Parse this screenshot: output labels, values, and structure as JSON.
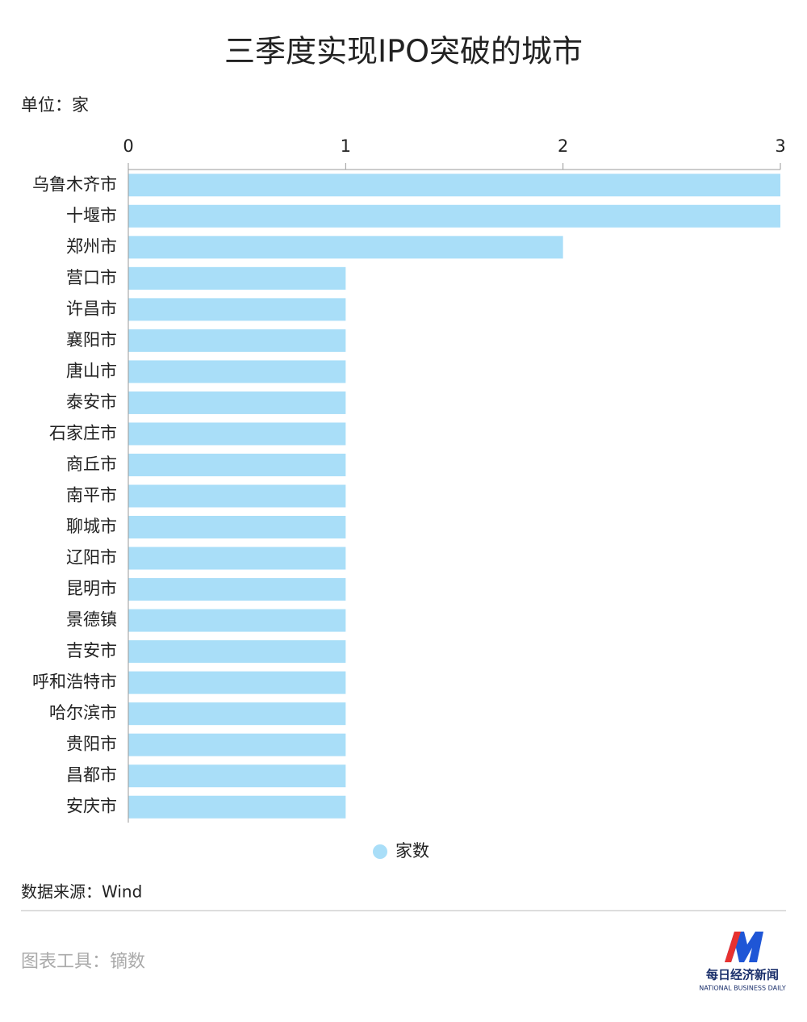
{
  "chart_data": {
    "type": "bar",
    "orientation": "horizontal",
    "title": "三季度实现IPO突破的城市",
    "unit_label": "单位：家",
    "categories": [
      "乌鲁木齐市",
      "十堰市",
      "郑州市",
      "营口市",
      "许昌市",
      "襄阳市",
      "唐山市",
      "泰安市",
      "石家庄市",
      "商丘市",
      "南平市",
      "聊城市",
      "辽阳市",
      "昆明市",
      "景德镇",
      "吉安市",
      "呼和浩特市",
      "哈尔滨市",
      "贵阳市",
      "昌都市",
      "安庆市"
    ],
    "series": [
      {
        "name": "家数",
        "color": "#a9def8",
        "values": [
          3,
          3,
          2,
          1,
          1,
          1,
          1,
          1,
          1,
          1,
          1,
          1,
          1,
          1,
          1,
          1,
          1,
          1,
          1,
          1,
          1
        ]
      }
    ],
    "xlim": [
      0,
      3
    ],
    "xticks": [
      0,
      1,
      2,
      3
    ],
    "grid": false,
    "legend": "bottom",
    "source": "数据来源：Wind"
  },
  "footer": {
    "tool": "图表工具：镝数",
    "logo_name": "每日经济新闻",
    "logo_subtitle": "NATIONAL BUSINESS DAILY"
  }
}
